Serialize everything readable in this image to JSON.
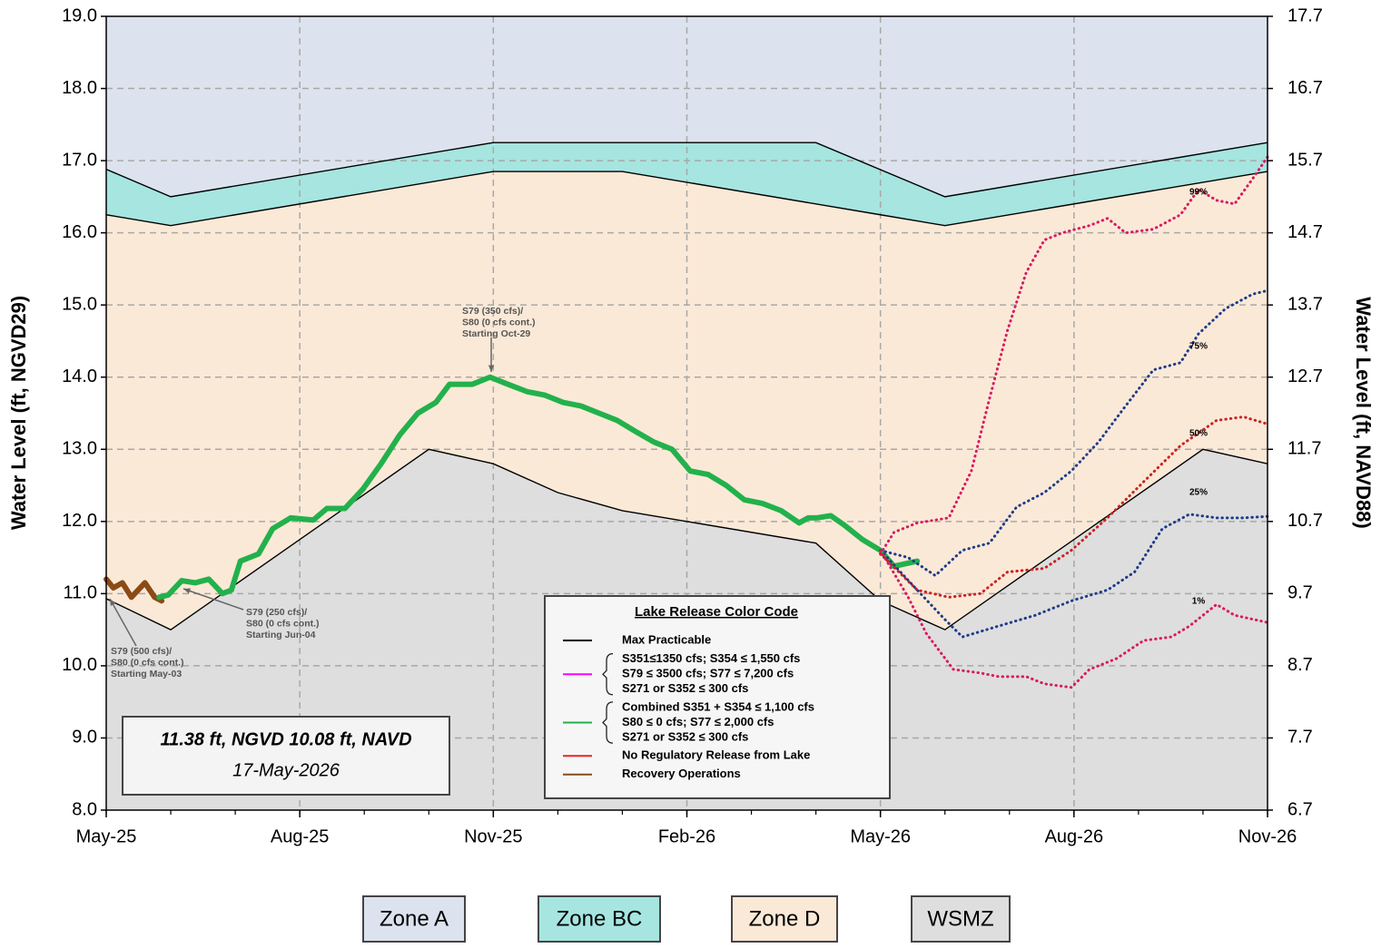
{
  "chart_data": {
    "type": "line",
    "ylabel": "Water Level (ft, NGVD29)",
    "y2label": "Water Level (ft, NAVD88)",
    "xlim": [
      0,
      18
    ],
    "xticks": [
      {
        "value": 0,
        "label": "May-25"
      },
      {
        "value": 3,
        "label": "Aug-25"
      },
      {
        "value": 6,
        "label": "Nov-25"
      },
      {
        "value": 9,
        "label": "Feb-26"
      },
      {
        "value": 12,
        "label": "May-26"
      },
      {
        "value": 15,
        "label": "Aug-26"
      },
      {
        "value": 18,
        "label": "Nov-26"
      }
    ],
    "ylim": [
      8,
      19
    ],
    "yticks": [
      {
        "value": 8,
        "label": "8.0"
      },
      {
        "value": 9,
        "label": "9.0"
      },
      {
        "value": 10,
        "label": "10.0"
      },
      {
        "value": 11,
        "label": "11.0"
      },
      {
        "value": 12,
        "label": "12.0"
      },
      {
        "value": 13,
        "label": "13.0"
      },
      {
        "value": 14,
        "label": "14.0"
      },
      {
        "value": 15,
        "label": "15.0"
      },
      {
        "value": 16,
        "label": "16.0"
      },
      {
        "value": 17,
        "label": "17.0"
      },
      {
        "value": 18,
        "label": "18.0"
      },
      {
        "value": 19,
        "label": "19.0"
      }
    ],
    "y2lim": [
      6.7,
      17.7
    ],
    "y2ticks": [
      6.7,
      7.7,
      8.7,
      9.7,
      10.7,
      11.7,
      12.7,
      13.7,
      14.7,
      15.7,
      16.7,
      17.7
    ],
    "grid": true,
    "zones": [
      {
        "name": "WSMZ",
        "color": "#dedede"
      },
      {
        "name": "Zone D",
        "color": "#fbe9d7",
        "x": [
          0,
          1,
          5,
          6,
          7,
          8,
          11,
          12,
          13,
          17,
          18
        ],
        "values": [
          10.93,
          10.5,
          13.0,
          12.8,
          12.4,
          12.15,
          11.7,
          10.9,
          10.5,
          13.0,
          12.8
        ]
      },
      {
        "name": "Zone BC",
        "color": "#a6e5e0",
        "x": [
          0,
          1,
          6,
          8,
          12,
          13,
          18
        ],
        "values": [
          16.25,
          16.1,
          16.85,
          16.85,
          16.25,
          16.1,
          16.85
        ]
      },
      {
        "name": "Zone A",
        "color": "#dce3ee",
        "x": [
          0,
          1,
          6,
          11,
          13,
          18
        ],
        "values": [
          16.88,
          16.5,
          17.25,
          17.25,
          16.5,
          17.25
        ]
      }
    ],
    "series": [
      {
        "color": "#8b4a16",
        "x": [
          0,
          0.11,
          0.25,
          0.39,
          0.6,
          0.75,
          0.86
        ],
        "values": [
          11.2,
          11.08,
          11.15,
          10.95,
          11.15,
          10.95,
          10.9
        ]
      },
      {
        "color": "#22b14c",
        "x": [
          0.82,
          0.96,
          1.17,
          1.38,
          1.59,
          1.8,
          1.94,
          2.08,
          2.36,
          2.58,
          2.86,
          3.21,
          3.42,
          3.7,
          3.98,
          4.26,
          4.55,
          4.83,
          5.11,
          5.32,
          5.67,
          5.95,
          6.23,
          6.52,
          6.8,
          7.08,
          7.36,
          7.64,
          7.92,
          8.2,
          8.49,
          8.77,
          9.05,
          9.33,
          9.61,
          9.89,
          10.17,
          10.46,
          10.74,
          10.88,
          11.02,
          11.23,
          11.44,
          11.72,
          12.0,
          12.21,
          12.57
        ],
        "values": [
          10.95,
          10.98,
          11.18,
          11.15,
          11.2,
          11.0,
          11.05,
          11.45,
          11.55,
          11.9,
          12.05,
          12.02,
          12.18,
          12.18,
          12.45,
          12.8,
          13.2,
          13.5,
          13.65,
          13.9,
          13.9,
          14.0,
          13.9,
          13.8,
          13.75,
          13.65,
          13.6,
          13.5,
          13.4,
          13.25,
          13.1,
          13.0,
          12.7,
          12.65,
          12.5,
          12.3,
          12.25,
          12.15,
          11.98,
          12.05,
          12.05,
          12.08,
          11.95,
          11.75,
          11.6,
          11.38,
          11.45
        ]
      },
      {
        "name": "99%",
        "color": "#d81b60",
        "style": "dotted",
        "x": [
          12.0,
          12.21,
          12.57,
          13.06,
          13.41,
          13.69,
          13.97,
          14.26,
          14.54,
          14.82,
          15.24,
          15.52,
          15.8,
          16.23,
          16.65,
          16.93,
          17.21,
          17.49,
          17.77,
          18
        ],
        "values": [
          11.55,
          11.85,
          11.98,
          12.05,
          12.7,
          13.7,
          14.65,
          15.45,
          15.9,
          16.0,
          16.1,
          16.2,
          16.0,
          16.05,
          16.25,
          16.6,
          16.45,
          16.4,
          16.75,
          17.05
        ]
      },
      {
        "name": "75%",
        "color": "#1f3c88",
        "style": "dotted",
        "x": [
          12.0,
          12.43,
          12.85,
          13.27,
          13.69,
          14.11,
          14.54,
          14.96,
          15.38,
          15.8,
          16.23,
          16.65,
          16.93,
          17.35,
          17.77,
          18
        ],
        "values": [
          11.6,
          11.5,
          11.25,
          11.6,
          11.7,
          12.2,
          12.4,
          12.7,
          13.1,
          13.6,
          14.1,
          14.2,
          14.6,
          14.95,
          15.15,
          15.2
        ]
      },
      {
        "name": "50%",
        "color": "#cc2222",
        "style": "dotted",
        "x": [
          12.0,
          12.57,
          13.06,
          13.55,
          13.97,
          14.54,
          14.96,
          15.52,
          16.08,
          16.65,
          17.21,
          17.63,
          18
        ],
        "values": [
          11.55,
          11.05,
          10.95,
          11.0,
          11.3,
          11.35,
          11.6,
          12.05,
          12.55,
          13.05,
          13.4,
          13.45,
          13.35
        ]
      },
      {
        "name": "25%",
        "color": "#1f3c88",
        "style": "dotted",
        "x": [
          12.0,
          12.57,
          12.99,
          13.27,
          13.83,
          14.4,
          14.96,
          15.52,
          15.94,
          16.37,
          16.79,
          17.21,
          17.63,
          18
        ],
        "values": [
          11.6,
          11.05,
          10.65,
          10.4,
          10.55,
          10.7,
          10.9,
          11.05,
          11.3,
          11.9,
          12.1,
          12.05,
          12.05,
          12.07
        ]
      },
      {
        "name": "1%",
        "color": "#d81b60",
        "style": "dotted",
        "x": [
          12.0,
          12.43,
          12.71,
          13.13,
          13.55,
          13.83,
          14.26,
          14.54,
          14.96,
          15.24,
          15.66,
          16.08,
          16.51,
          16.79,
          17.21,
          17.49,
          18
        ],
        "values": [
          11.6,
          10.95,
          10.45,
          9.95,
          9.9,
          9.85,
          9.85,
          9.75,
          9.7,
          9.95,
          10.1,
          10.35,
          10.4,
          10.55,
          10.85,
          10.7,
          10.6
        ]
      }
    ],
    "annotations": [
      {
        "lines": [
          "S79 (350 cfs)/",
          "S80 (0 cfs cont.)",
          "Starting Oct-29"
        ]
      },
      {
        "lines": [
          "S79 (250 cfs)/",
          "S80 (0 cfs cont.)",
          "Starting Jun-04"
        ]
      },
      {
        "lines": [
          "S79 (500 cfs)/",
          "S80 (0 cfs cont.)",
          "Starting May-03"
        ]
      }
    ],
    "legend": {
      "title": "Lake Release Color Code",
      "entries": [
        {
          "color": "#000000",
          "lines": [
            "Max Practicable"
          ]
        },
        {
          "color": "#ff00ff",
          "lines": [
            "S351≤1350 cfs; S354 ≤ 1,550 cfs",
            "S79 ≤ 3500 cfs; S77 ≤ 7,200 cfs",
            "S271 or S352 ≤ 300 cfs"
          ]
        },
        {
          "color": "#22b14c",
          "lines": [
            "Combined S351 + S354 ≤ 1,100 cfs",
            "S80 ≤ 0 cfs; S77 ≤ 2,000 cfs",
            "S271 or S352 ≤ 300 cfs"
          ]
        },
        {
          "color": "#ee2222",
          "lines": [
            "No Regulatory Release from Lake"
          ]
        },
        {
          "color": "#8b4a16",
          "lines": [
            "Recovery Operations"
          ]
        }
      ]
    },
    "current": {
      "level": "11.38 ft, NGVD 10.08 ft, NAVD",
      "date": "17-May-2026"
    }
  }
}
